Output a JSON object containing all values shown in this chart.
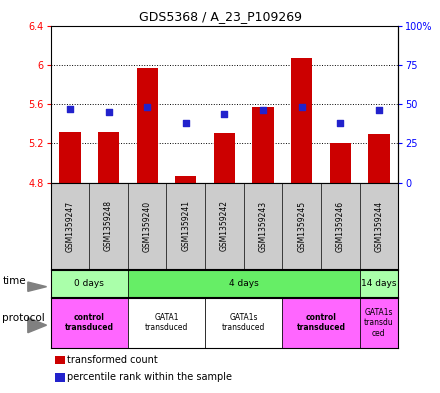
{
  "title": "GDS5368 / A_23_P109269",
  "samples": [
    "GSM1359247",
    "GSM1359248",
    "GSM1359240",
    "GSM1359241",
    "GSM1359242",
    "GSM1359243",
    "GSM1359245",
    "GSM1359246",
    "GSM1359244"
  ],
  "transformed_counts": [
    5.32,
    5.32,
    5.97,
    4.87,
    5.31,
    5.57,
    6.07,
    5.2,
    5.3
  ],
  "percentile_ranks": [
    47,
    45,
    48,
    38,
    44,
    46,
    48,
    38,
    46
  ],
  "ylim_left": [
    4.8,
    6.4
  ],
  "ylim_right": [
    0,
    100
  ],
  "yticks_left": [
    4.8,
    5.2,
    5.6,
    6.0,
    6.4
  ],
  "yticks_right": [
    0,
    25,
    50,
    75,
    100
  ],
  "ytick_labels_left": [
    "4.8",
    "5.2",
    "5.6",
    "6",
    "6.4"
  ],
  "ytick_labels_right": [
    "0",
    "25",
    "50",
    "75",
    "100%"
  ],
  "bar_color": "#cc0000",
  "dot_color": "#2222cc",
  "baseline": 4.8,
  "time_groups": [
    {
      "label": "0 days",
      "start": 0,
      "end": 2,
      "color": "#aaffaa"
    },
    {
      "label": "4 days",
      "start": 2,
      "end": 8,
      "color": "#66ee66"
    },
    {
      "label": "14 days",
      "start": 8,
      "end": 9,
      "color": "#aaffaa"
    }
  ],
  "protocol_groups": [
    {
      "label": "control\ntransduced",
      "start": 0,
      "end": 2,
      "color": "#ff66ff",
      "bold": true
    },
    {
      "label": "GATA1\ntransduced",
      "start": 2,
      "end": 4,
      "color": "#ffffff",
      "bold": false
    },
    {
      "label": "GATA1s\ntransduced",
      "start": 4,
      "end": 6,
      "color": "#ffffff",
      "bold": false
    },
    {
      "label": "control\ntransduced",
      "start": 6,
      "end": 8,
      "color": "#ff66ff",
      "bold": true
    },
    {
      "label": "GATA1s\ntransdu\nced",
      "start": 8,
      "end": 9,
      "color": "#ff66ff",
      "bold": false
    }
  ],
  "bg_color": "#cccccc",
  "plot_bg": "#ffffff",
  "grid_color": "#000000"
}
